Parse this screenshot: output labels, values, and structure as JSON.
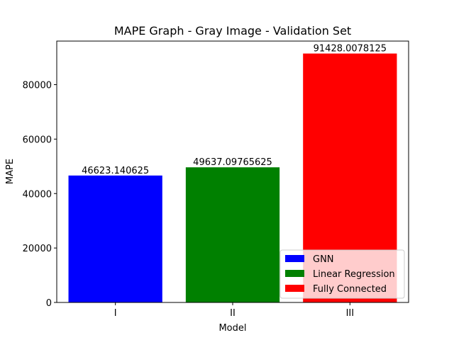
{
  "chart_data": {
    "type": "bar",
    "title": "MAPE Graph - Gray Image - Validation Set",
    "xlabel": "Model",
    "ylabel": "MAPE",
    "categories": [
      "I",
      "II",
      "III"
    ],
    "values": [
      46623.140625,
      49637.09765625,
      91428.0078125
    ],
    "value_labels": [
      "46623.140625",
      "49637.09765625",
      "91428.0078125"
    ],
    "series_names": [
      "GNN",
      "Linear Regression",
      "Fully Connected"
    ],
    "colors": [
      "#0000ff",
      "#008000",
      "#ff0000"
    ],
    "ylim": [
      0,
      96000
    ],
    "yticks": [
      0,
      20000,
      40000,
      60000,
      80000
    ],
    "grid": false,
    "legend_position": "lower-right"
  }
}
